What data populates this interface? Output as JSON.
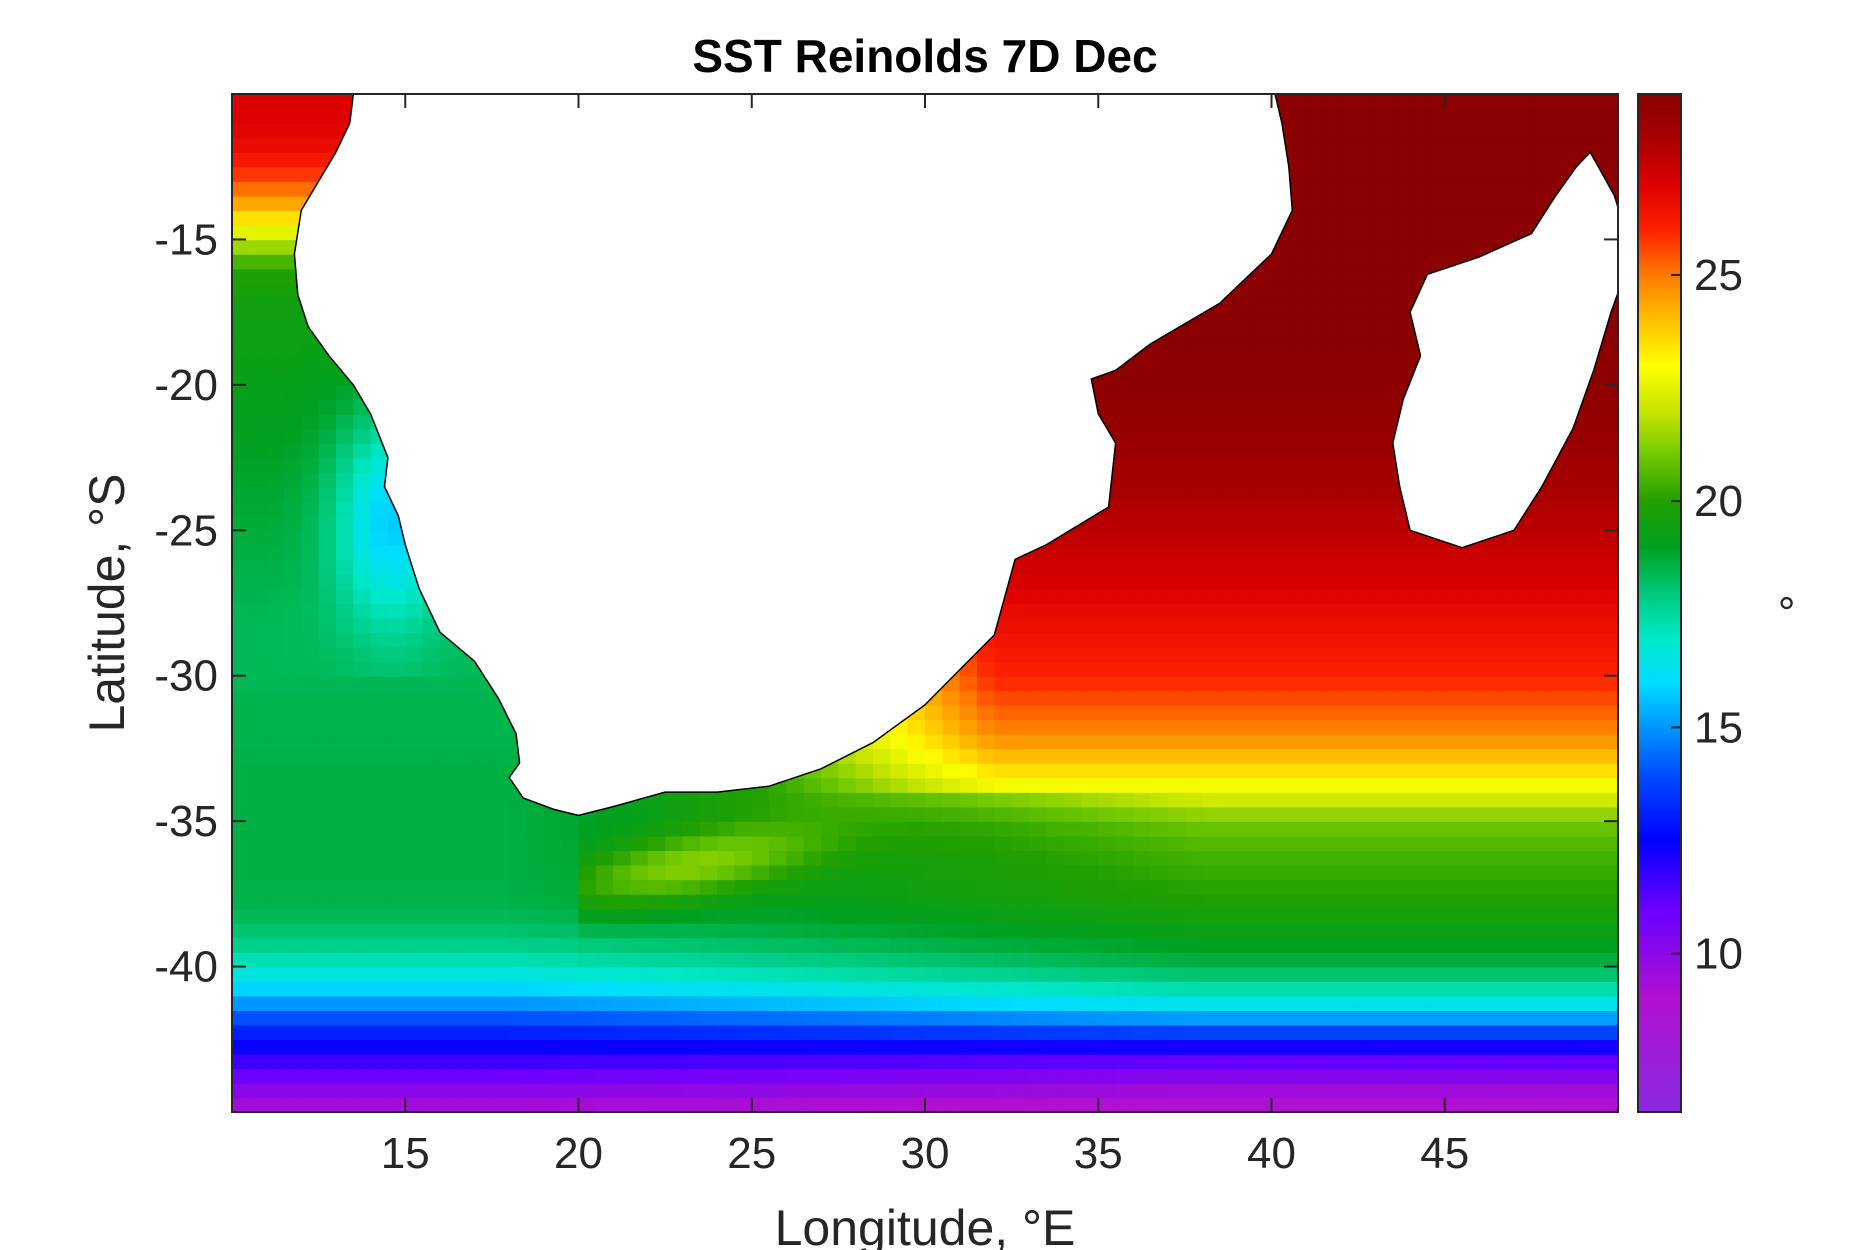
{
  "title": "SST Reinolds 7D Dec",
  "x_axis": {
    "label": "Longitude, °E",
    "range": [
      10,
      50
    ],
    "ticks": [
      15,
      20,
      25,
      30,
      35,
      40,
      45
    ],
    "tick_labels": [
      "15",
      "20",
      "25",
      "30",
      "35",
      "40",
      "45"
    ]
  },
  "y_axis": {
    "label": "Latitude, °S",
    "range": [
      -45,
      -10
    ],
    "ticks": [
      -15,
      -20,
      -25,
      -30,
      -35,
      -40
    ],
    "tick_labels": [
      "-15",
      "-20",
      "-25",
      "-30",
      "-35",
      "-40"
    ]
  },
  "colorbar": {
    "label": "°",
    "range": [
      6.5,
      29
    ],
    "ticks": [
      10,
      15,
      20,
      25
    ],
    "tick_labels": [
      "10",
      "15",
      "20",
      "25"
    ],
    "colormap": [
      [
        6.5,
        "#8a2be2"
      ],
      [
        9,
        "#b010d0"
      ],
      [
        11,
        "#6a00ff"
      ],
      [
        12.5,
        "#0000ff"
      ],
      [
        14,
        "#0050ff"
      ],
      [
        15,
        "#0096ff"
      ],
      [
        16,
        "#00ddff"
      ],
      [
        17,
        "#00e8c8"
      ],
      [
        18,
        "#00c878"
      ],
      [
        19,
        "#00a020"
      ],
      [
        20,
        "#22a000"
      ],
      [
        21,
        "#70c800"
      ],
      [
        22,
        "#c8e600"
      ],
      [
        23,
        "#ffff00"
      ],
      [
        24,
        "#ffc000"
      ],
      [
        25,
        "#ff7a00"
      ],
      [
        26,
        "#ff2000"
      ],
      [
        27,
        "#dd0000"
      ],
      [
        28,
        "#a80000"
      ],
      [
        29,
        "#8b0000"
      ]
    ]
  },
  "sst_profile": {
    "lat_knots": [
      -45,
      -44,
      -43,
      -42,
      -41,
      -40,
      -39,
      -38,
      -37,
      -36,
      -35,
      -34,
      -33,
      -32,
      -31,
      -30,
      -29,
      -28,
      -27,
      -26,
      -25,
      -24,
      -23,
      -22,
      -21,
      -20,
      -19,
      -18,
      -17,
      -16,
      -15,
      -14,
      -13,
      -12,
      -11,
      -10
    ],
    "west_coast_sst": [
      9,
      10.5,
      12,
      13.5,
      15.5,
      17,
      18,
      18.5,
      18.6,
      18.6,
      18.6,
      18.6,
      18.6,
      18.5,
      18.5,
      18.4,
      18.4,
      18.4,
      18.5,
      18.6,
      18.7,
      18.8,
      18.9,
      19,
      19.1,
      19.2,
      19.3,
      19.4,
      19.5,
      20,
      22,
      24,
      25.5,
      26.5,
      27,
      27
    ],
    "east_open_sst": [
      8.5,
      9.8,
      11.5,
      14.5,
      17,
      18.5,
      19.2,
      19.8,
      20.2,
      20.5,
      21,
      22.5,
      23.8,
      24.8,
      25.4,
      26,
      26.3,
      26.6,
      27,
      27.3,
      27.6,
      27.9,
      28.2,
      28.5,
      28.7,
      28.9,
      29,
      29,
      29,
      29,
      29,
      29,
      29,
      29,
      29,
      29
    ]
  },
  "africa_outline": [
    [
      13.5,
      -10
    ],
    [
      13.4,
      -11
    ],
    [
      13.0,
      -12.0
    ],
    [
      12.5,
      -13.0
    ],
    [
      12.0,
      -14.0
    ],
    [
      11.8,
      -15.5
    ],
    [
      11.9,
      -16.9
    ],
    [
      12.2,
      -18.0
    ],
    [
      12.8,
      -19.0
    ],
    [
      13.5,
      -20.0
    ],
    [
      14.0,
      -21.0
    ],
    [
      14.5,
      -22.5
    ],
    [
      14.4,
      -23.5
    ],
    [
      14.8,
      -24.5
    ],
    [
      15.0,
      -25.5
    ],
    [
      15.4,
      -27.0
    ],
    [
      16.0,
      -28.5
    ],
    [
      17.0,
      -29.5
    ],
    [
      17.7,
      -30.8
    ],
    [
      18.2,
      -32.0
    ],
    [
      18.3,
      -33.0
    ],
    [
      18.0,
      -33.5
    ],
    [
      18.4,
      -34.2
    ],
    [
      19.3,
      -34.6
    ],
    [
      20.0,
      -34.8
    ],
    [
      21.0,
      -34.5
    ],
    [
      22.5,
      -34.0
    ],
    [
      24.0,
      -34.0
    ],
    [
      25.5,
      -33.8
    ],
    [
      27.0,
      -33.2
    ],
    [
      28.5,
      -32.3
    ],
    [
      30.0,
      -31.0
    ],
    [
      31.0,
      -29.8
    ],
    [
      32.0,
      -28.6
    ],
    [
      32.3,
      -27.3
    ],
    [
      32.6,
      -26.0
    ],
    [
      33.5,
      -25.5
    ],
    [
      35.3,
      -24.2
    ],
    [
      35.5,
      -22.0
    ],
    [
      35.0,
      -21.0
    ],
    [
      34.8,
      -19.8
    ],
    [
      35.5,
      -19.5
    ],
    [
      36.5,
      -18.6
    ],
    [
      38.5,
      -17.2
    ],
    [
      40.0,
      -15.5
    ],
    [
      40.6,
      -14.0
    ],
    [
      40.5,
      -12.5
    ],
    [
      40.3,
      -11.0
    ],
    [
      40.1,
      -10
    ]
  ],
  "madagascar_outline": [
    [
      49.2,
      -12.0
    ],
    [
      49.9,
      -13.5
    ],
    [
      50.4,
      -15.5
    ],
    [
      49.8,
      -17.5
    ],
    [
      49.3,
      -19.5
    ],
    [
      48.7,
      -21.5
    ],
    [
      47.8,
      -23.5
    ],
    [
      47.0,
      -25.0
    ],
    [
      45.5,
      -25.6
    ],
    [
      44.0,
      -25.0
    ],
    [
      43.7,
      -23.5
    ],
    [
      43.5,
      -22.0
    ],
    [
      43.8,
      -20.5
    ],
    [
      44.3,
      -19.0
    ],
    [
      44.0,
      -17.5
    ],
    [
      44.5,
      -16.2
    ],
    [
      46.0,
      -15.6
    ],
    [
      47.5,
      -14.8
    ],
    [
      48.2,
      -13.5
    ],
    [
      48.8,
      -12.5
    ]
  ]
}
